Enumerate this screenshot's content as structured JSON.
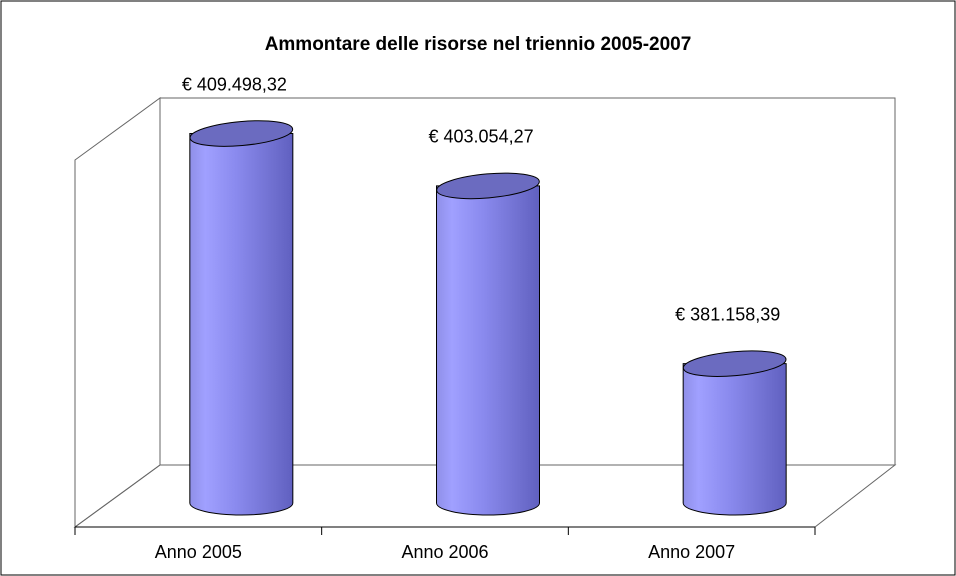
{
  "chart_data": {
    "type": "bar3d",
    "title": "Ammontare delle risorse nel triennio 2005-2007",
    "categories": [
      "Anno 2005",
      "Anno 2006",
      "Anno 2007"
    ],
    "values": [
      409498.32,
      403054.27,
      381158.39
    ],
    "value_labels": [
      "€ 409.498,32",
      "€ 403.054,27",
      "€ 381.158,39"
    ],
    "color": "#9999ff",
    "ylim": [
      364000,
      414000
    ]
  }
}
